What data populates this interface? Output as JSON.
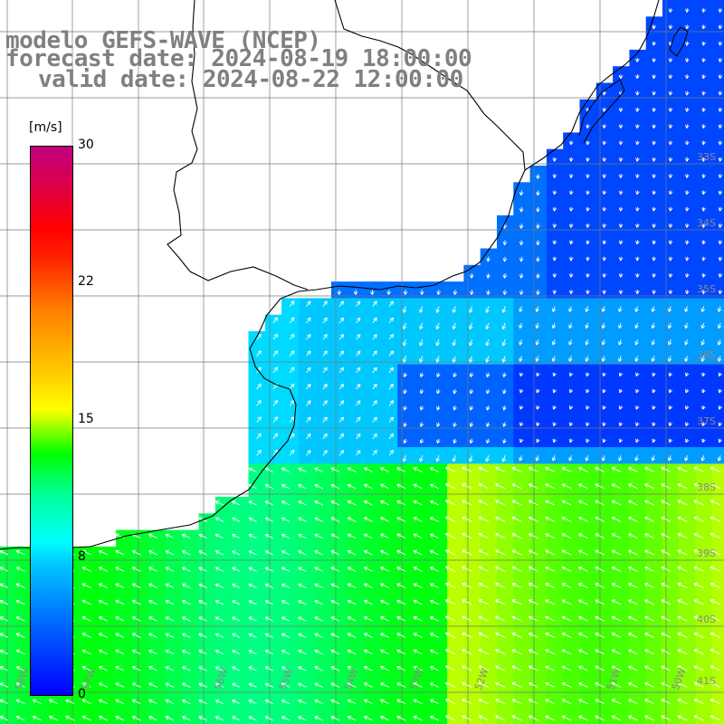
{
  "title": {
    "line1": "modelo GEFS-WAVE (NCEP)",
    "line2": "forecast date: 2024-08-19 18:00:00",
    "line3": "valid date: 2024-08-22 12:00:00"
  },
  "colorbar": {
    "unit": "[m/s]",
    "ticks": [
      "30",
      "22",
      "15",
      "8",
      "0"
    ],
    "colors": [
      "#0000ff",
      "#00c8ff",
      "#00ffff",
      "#00ff00",
      "#ffff00",
      "#ff8000",
      "#ff0000",
      "#c0007f"
    ]
  },
  "lat_labels": [
    "33S",
    "34S",
    "35S",
    "36S",
    "37S",
    "38S",
    "39S",
    "40S",
    "41S"
  ],
  "lon_labels": [
    "58W",
    "57W",
    "56W",
    "55W",
    "54W",
    "53W",
    "52W",
    "51W",
    "50W"
  ],
  "map_data": {
    "variable": "wind speed",
    "units": "m/s",
    "region": "Rio de la Plata / Uruguay coast / SW Atlantic"
  }
}
